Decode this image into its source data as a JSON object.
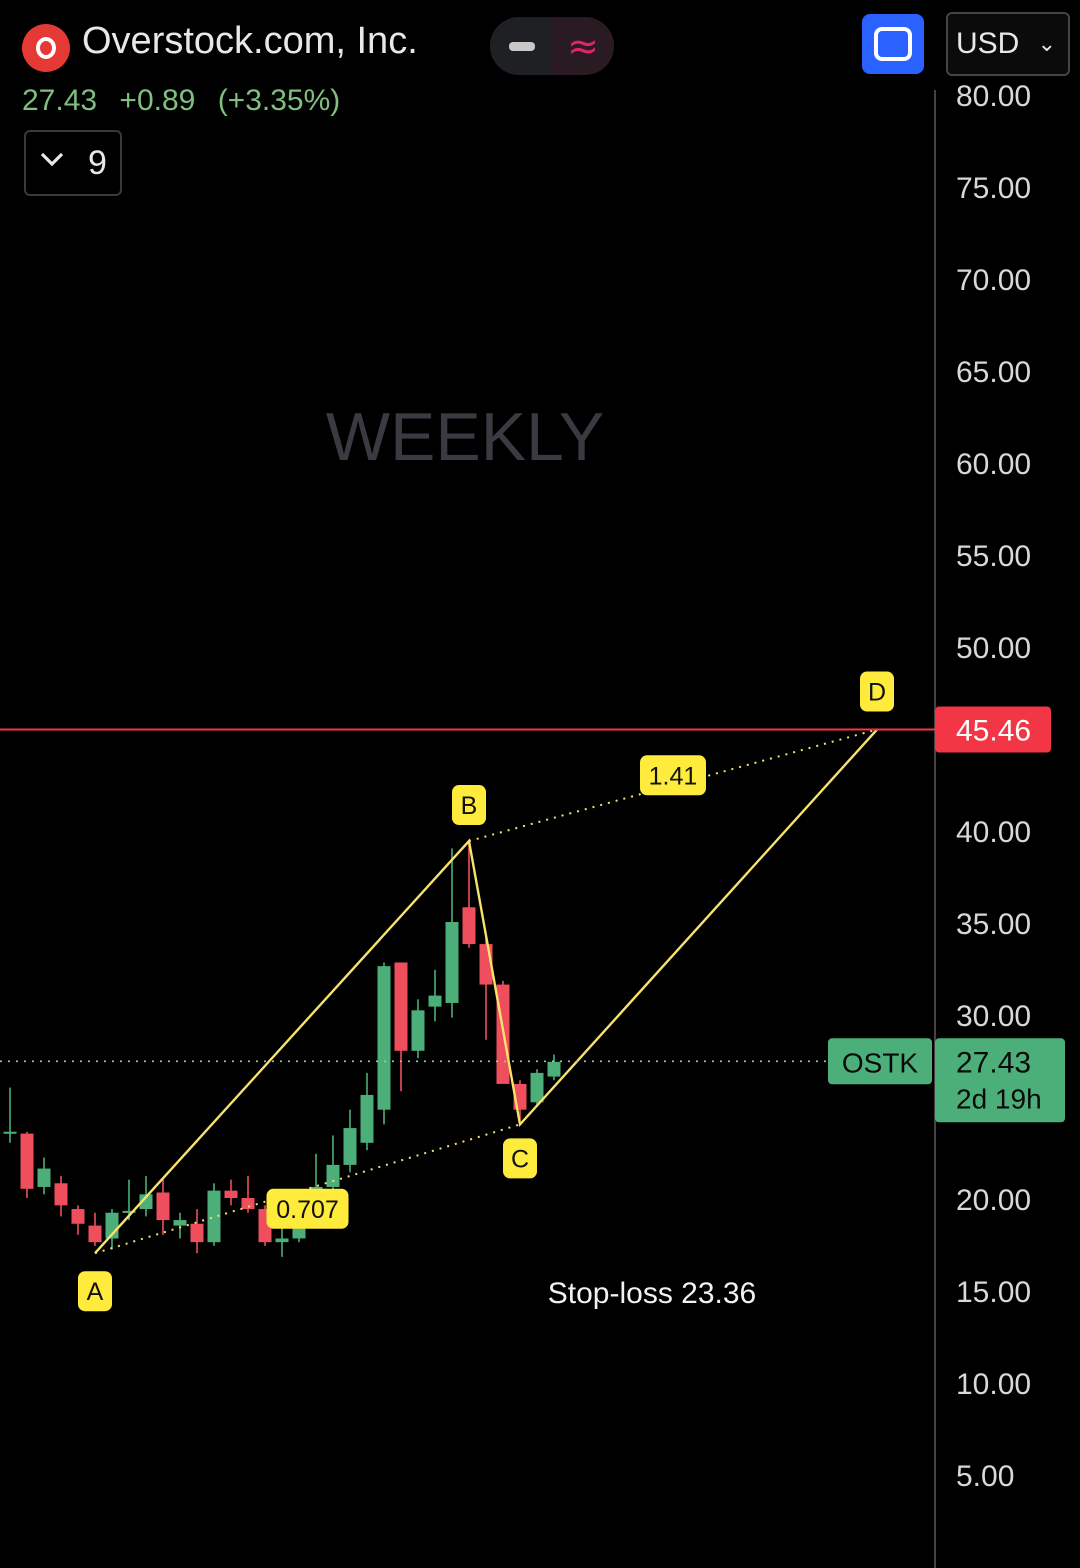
{
  "header": {
    "title": "Overstock.com, Inc.",
    "logo_icon": "overstock-logo-icon",
    "price": "27.43",
    "change": "+0.89",
    "change_pct": "(+3.35%)",
    "indicator_count": "9",
    "currency": "USD",
    "toggle_right_glyph": "≈"
  },
  "chart_data": {
    "type": "candlestick",
    "watermark": "WEEKLY",
    "y_ticks": [
      "80.00",
      "75.00",
      "70.00",
      "65.00",
      "60.00",
      "55.00",
      "50.00",
      "40.00",
      "35.00",
      "30.00",
      "20.00",
      "15.00",
      "10.00",
      "5.00"
    ],
    "ylim": [
      0,
      80
    ],
    "candles": [
      {
        "o": 23.5,
        "h": 26.0,
        "l": 23.0,
        "c": 23.6
      },
      {
        "o": 23.5,
        "h": 23.6,
        "l": 20.0,
        "c": 20.5
      },
      {
        "o": 20.6,
        "h": 22.2,
        "l": 20.2,
        "c": 21.6
      },
      {
        "o": 20.8,
        "h": 21.2,
        "l": 19.0,
        "c": 19.6
      },
      {
        "o": 19.4,
        "h": 19.6,
        "l": 18.0,
        "c": 18.6
      },
      {
        "o": 18.5,
        "h": 19.2,
        "l": 17.4,
        "c": 17.6
      },
      {
        "o": 17.8,
        "h": 19.4,
        "l": 17.2,
        "c": 19.2
      },
      {
        "o": 19.2,
        "h": 21.0,
        "l": 18.8,
        "c": 19.3
      },
      {
        "o": 19.4,
        "h": 21.2,
        "l": 19.0,
        "c": 20.2
      },
      {
        "o": 20.3,
        "h": 21.0,
        "l": 18.0,
        "c": 18.8
      },
      {
        "o": 18.5,
        "h": 19.2,
        "l": 17.8,
        "c": 18.8
      },
      {
        "o": 18.6,
        "h": 19.4,
        "l": 17.0,
        "c": 17.6
      },
      {
        "o": 17.6,
        "h": 20.8,
        "l": 17.4,
        "c": 20.4
      },
      {
        "o": 20.4,
        "h": 21.0,
        "l": 19.6,
        "c": 20.0
      },
      {
        "o": 20.0,
        "h": 21.2,
        "l": 19.2,
        "c": 19.4
      },
      {
        "o": 19.4,
        "h": 19.6,
        "l": 17.4,
        "c": 17.6
      },
      {
        "o": 17.6,
        "h": 18.4,
        "l": 16.8,
        "c": 17.8
      },
      {
        "o": 17.8,
        "h": 19.8,
        "l": 17.6,
        "c": 19.2
      },
      {
        "o": 19.4,
        "h": 22.4,
        "l": 19.0,
        "c": 20.6
      },
      {
        "o": 20.6,
        "h": 23.4,
        "l": 20.0,
        "c": 21.8
      },
      {
        "o": 21.8,
        "h": 24.8,
        "l": 21.4,
        "c": 23.8
      },
      {
        "o": 23.0,
        "h": 26.8,
        "l": 22.6,
        "c": 25.6
      },
      {
        "o": 24.8,
        "h": 32.8,
        "l": 24.0,
        "c": 32.6
      },
      {
        "o": 32.8,
        "h": 32.8,
        "l": 25.8,
        "c": 28.0
      },
      {
        "o": 28.0,
        "h": 30.8,
        "l": 27.6,
        "c": 30.2
      },
      {
        "o": 30.4,
        "h": 32.4,
        "l": 29.6,
        "c": 31.0
      },
      {
        "o": 30.6,
        "h": 39.0,
        "l": 29.8,
        "c": 35.0
      },
      {
        "o": 35.8,
        "h": 39.4,
        "l": 33.6,
        "c": 33.8
      },
      {
        "o": 33.8,
        "h": 34.4,
        "l": 28.6,
        "c": 31.6
      },
      {
        "o": 31.6,
        "h": 31.8,
        "l": 26.4,
        "c": 26.2
      },
      {
        "o": 26.2,
        "h": 26.4,
        "l": 24.2,
        "c": 24.8
      },
      {
        "o": 25.2,
        "h": 27.0,
        "l": 25.0,
        "c": 26.8
      },
      {
        "o": 26.6,
        "h": 27.8,
        "l": 26.4,
        "c": 27.4
      }
    ],
    "pattern": {
      "A": {
        "label": "A",
        "candle": 5,
        "price": 17.0
      },
      "B": {
        "label": "B",
        "candle": 27,
        "price": 39.4
      },
      "C": {
        "label": "C",
        "candle": 30,
        "price": 24.0
      },
      "D": {
        "label": "D",
        "candle": 51,
        "price": 45.46
      },
      "ratio_ac": "0.707",
      "ratio_bd": "1.41"
    },
    "target_line": {
      "price": 45.46,
      "label": "45.46",
      "color": "#f23645"
    },
    "last_price": {
      "price": 27.43,
      "label": "27.43",
      "countdown": "2d 19h",
      "symbol": "OSTK",
      "color": "#4caf7a"
    },
    "annotation": "Stop-loss 23.36",
    "colors": {
      "up": "#4caf7a",
      "down": "#ef4e5c",
      "pattern": "#f7e26b",
      "label_bg": "#ffeb3b"
    }
  }
}
